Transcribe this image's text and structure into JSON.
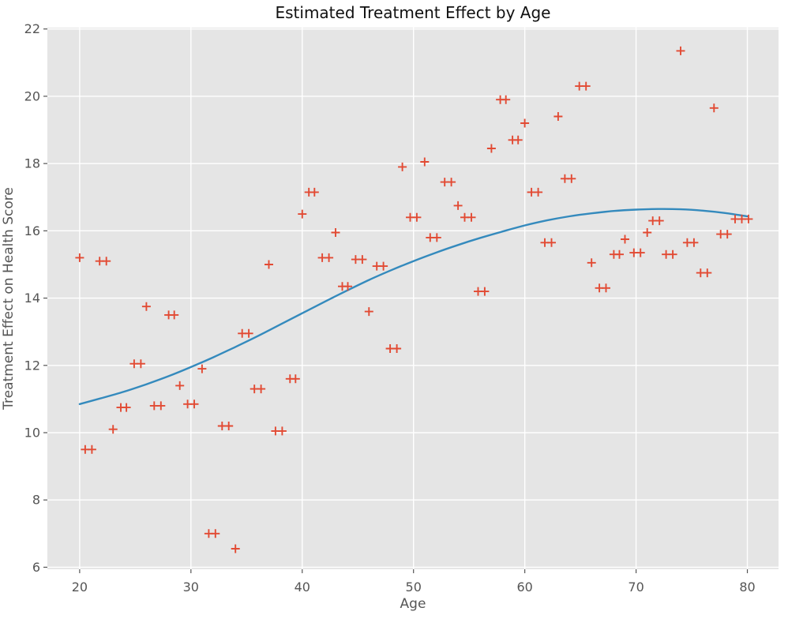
{
  "chart_data": {
    "type": "scatter",
    "title": "Estimated Treatment Effect by Age",
    "xlabel": "Age",
    "ylabel": "Treatment Effect on Health Score",
    "xlim": [
      17.1,
      82.8
    ],
    "ylim": [
      5.94,
      22.04
    ],
    "xticks": [
      20,
      30,
      40,
      50,
      60,
      70,
      80
    ],
    "yticks": [
      6,
      8,
      10,
      12,
      14,
      16,
      18,
      20,
      22
    ],
    "grid": true,
    "legend": null,
    "colors": {
      "figure_bg": "#ffffff",
      "plot_bg": "#e5e5e5",
      "grid": "#ffffff",
      "marker": "#e24a33",
      "trend": "#348abd",
      "tick": "#555555",
      "title": "#111111"
    },
    "series": [
      {
        "name": "observations",
        "type": "scatter",
        "marker": "plus",
        "color": "#e24a33",
        "points": [
          [
            20.0,
            15.2
          ],
          [
            20.5,
            9.5
          ],
          [
            21.1,
            9.5
          ],
          [
            21.8,
            15.1
          ],
          [
            22.4,
            15.1
          ],
          [
            23.0,
            10.1
          ],
          [
            23.7,
            10.75
          ],
          [
            24.2,
            10.75
          ],
          [
            24.9,
            12.05
          ],
          [
            25.5,
            12.05
          ],
          [
            26.0,
            13.75
          ],
          [
            26.7,
            10.8
          ],
          [
            27.3,
            10.8
          ],
          [
            28.0,
            13.5
          ],
          [
            28.5,
            13.5
          ],
          [
            29.0,
            11.4
          ],
          [
            29.7,
            10.85
          ],
          [
            30.3,
            10.85
          ],
          [
            31.0,
            11.9
          ],
          [
            31.6,
            7.0
          ],
          [
            32.2,
            7.0
          ],
          [
            32.8,
            10.2
          ],
          [
            33.4,
            10.2
          ],
          [
            34.0,
            6.55
          ],
          [
            34.6,
            12.95
          ],
          [
            35.2,
            12.95
          ],
          [
            35.7,
            11.3
          ],
          [
            36.3,
            11.3
          ],
          [
            37.0,
            15.0
          ],
          [
            37.6,
            10.05
          ],
          [
            38.2,
            10.05
          ],
          [
            38.9,
            11.6
          ],
          [
            39.4,
            11.6
          ],
          [
            40.0,
            16.5
          ],
          [
            40.6,
            17.15
          ],
          [
            41.1,
            17.15
          ],
          [
            41.8,
            15.2
          ],
          [
            42.4,
            15.2
          ],
          [
            43.0,
            15.95
          ],
          [
            43.6,
            14.35
          ],
          [
            44.1,
            14.35
          ],
          [
            44.8,
            15.15
          ],
          [
            45.4,
            15.15
          ],
          [
            46.0,
            13.6
          ],
          [
            46.7,
            14.95
          ],
          [
            47.3,
            14.95
          ],
          [
            47.9,
            12.5
          ],
          [
            48.5,
            12.5
          ],
          [
            49.0,
            17.9
          ],
          [
            49.7,
            16.4
          ],
          [
            50.3,
            16.4
          ],
          [
            51.0,
            18.05
          ],
          [
            51.5,
            15.8
          ],
          [
            52.1,
            15.8
          ],
          [
            52.8,
            17.45
          ],
          [
            53.4,
            17.45
          ],
          [
            54.0,
            16.75
          ],
          [
            54.6,
            16.4
          ],
          [
            55.2,
            16.4
          ],
          [
            55.8,
            14.2
          ],
          [
            56.4,
            14.2
          ],
          [
            57.0,
            18.45
          ],
          [
            57.8,
            19.9
          ],
          [
            58.3,
            19.9
          ],
          [
            58.9,
            18.7
          ],
          [
            59.4,
            18.7
          ],
          [
            60.0,
            19.2
          ],
          [
            60.6,
            17.15
          ],
          [
            61.2,
            17.15
          ],
          [
            61.8,
            15.65
          ],
          [
            62.4,
            15.65
          ],
          [
            63.0,
            19.4
          ],
          [
            63.6,
            17.55
          ],
          [
            64.2,
            17.55
          ],
          [
            64.9,
            20.3
          ],
          [
            65.5,
            20.3
          ],
          [
            66.0,
            15.05
          ],
          [
            66.7,
            14.3
          ],
          [
            67.3,
            14.3
          ],
          [
            68.0,
            15.3
          ],
          [
            68.5,
            15.3
          ],
          [
            69.0,
            15.75
          ],
          [
            69.8,
            15.35
          ],
          [
            70.4,
            15.35
          ],
          [
            71.0,
            15.95
          ],
          [
            71.5,
            16.3
          ],
          [
            72.1,
            16.3
          ],
          [
            72.7,
            15.3
          ],
          [
            73.3,
            15.3
          ],
          [
            74.0,
            21.35
          ],
          [
            74.6,
            15.65
          ],
          [
            75.2,
            15.65
          ],
          [
            75.8,
            14.75
          ],
          [
            76.4,
            14.75
          ],
          [
            77.0,
            19.65
          ],
          [
            77.6,
            15.9
          ],
          [
            78.2,
            15.9
          ],
          [
            78.9,
            16.35
          ],
          [
            79.5,
            16.35
          ],
          [
            80.1,
            16.35
          ]
        ]
      },
      {
        "name": "smooth-fit",
        "type": "line",
        "color": "#348abd",
        "points": [
          [
            20,
            10.85
          ],
          [
            22,
            11.03
          ],
          [
            24,
            11.22
          ],
          [
            26,
            11.44
          ],
          [
            28,
            11.68
          ],
          [
            30,
            11.95
          ],
          [
            32,
            12.24
          ],
          [
            34,
            12.55
          ],
          [
            36,
            12.87
          ],
          [
            38,
            13.21
          ],
          [
            40,
            13.55
          ],
          [
            42,
            13.89
          ],
          [
            44,
            14.22
          ],
          [
            46,
            14.54
          ],
          [
            48,
            14.83
          ],
          [
            50,
            15.1
          ],
          [
            52,
            15.35
          ],
          [
            54,
            15.58
          ],
          [
            56,
            15.79
          ],
          [
            58,
            15.98
          ],
          [
            60,
            16.16
          ],
          [
            62,
            16.31
          ],
          [
            64,
            16.43
          ],
          [
            66,
            16.52
          ],
          [
            68,
            16.59
          ],
          [
            70,
            16.63
          ],
          [
            72,
            16.65
          ],
          [
            74,
            16.64
          ],
          [
            76,
            16.6
          ],
          [
            78,
            16.53
          ],
          [
            80,
            16.43
          ]
        ]
      }
    ]
  }
}
